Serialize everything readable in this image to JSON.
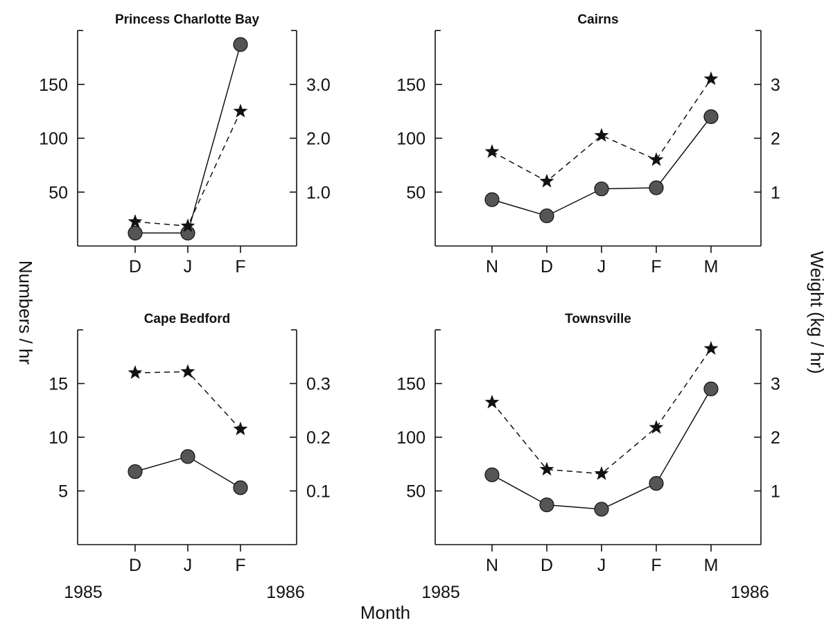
{
  "figure": {
    "y_left_title": "Numbers / hr",
    "y_right_title": "Weight (kg / hr)",
    "x_title": "Month"
  },
  "chart_data": [
    {
      "id": "pcb",
      "type": "line",
      "title": "Princess Charlotte Bay",
      "categories": [
        "D",
        "J",
        "F"
      ],
      "year_labels": [
        "",
        ""
      ],
      "ylim_left": [
        0,
        200
      ],
      "left_ticks": [
        50,
        100,
        150
      ],
      "left_tick_labels": [
        "50",
        "100",
        "150"
      ],
      "ylim_right": [
        0,
        4.0
      ],
      "right_ticks": [
        1.0,
        2.0,
        3.0
      ],
      "right_tick_labels": [
        "1.0",
        "2.0",
        "3.0"
      ],
      "grid": false,
      "series": [
        {
          "axis": "left",
          "marker": "circle",
          "line": "solid",
          "values": [
            12,
            12,
            187
          ]
        },
        {
          "axis": "right",
          "marker": "star",
          "line": "dashed",
          "values": [
            0.45,
            0.37,
            2.5
          ]
        }
      ]
    },
    {
      "id": "cairns",
      "type": "line",
      "title": "Cairns",
      "categories": [
        "N",
        "D",
        "J",
        "F",
        "M"
      ],
      "year_labels": [
        "",
        ""
      ],
      "ylim_left": [
        0,
        200
      ],
      "left_ticks": [
        50,
        100,
        150
      ],
      "left_tick_labels": [
        "50",
        "100",
        "150"
      ],
      "ylim_right": [
        0,
        4
      ],
      "right_ticks": [
        1,
        2,
        3
      ],
      "right_tick_labels": [
        "1",
        "2",
        "3"
      ],
      "grid": false,
      "series": [
        {
          "axis": "left",
          "marker": "circle",
          "line": "solid",
          "values": [
            43,
            28,
            53,
            54,
            120
          ]
        },
        {
          "axis": "right",
          "marker": "star",
          "line": "dashed",
          "values": [
            1.75,
            1.2,
            2.05,
            1.6,
            3.1
          ]
        }
      ]
    },
    {
      "id": "cape-bedford",
      "type": "line",
      "title": "Cape Bedford",
      "categories": [
        "D",
        "J",
        "F"
      ],
      "year_labels": [
        "1985",
        "1986"
      ],
      "ylim_left": [
        0,
        20
      ],
      "left_ticks": [
        5,
        10,
        15
      ],
      "left_tick_labels": [
        "5",
        "10",
        "15"
      ],
      "ylim_right": [
        0,
        0.4
      ],
      "right_ticks": [
        0.1,
        0.2,
        0.3
      ],
      "right_tick_labels": [
        "0.1",
        "0.2",
        "0.3"
      ],
      "grid": false,
      "series": [
        {
          "axis": "left",
          "marker": "circle",
          "line": "solid",
          "values": [
            6.8,
            8.2,
            5.3
          ]
        },
        {
          "axis": "right",
          "marker": "star",
          "line": "dashed",
          "values": [
            0.32,
            0.322,
            0.215
          ]
        }
      ]
    },
    {
      "id": "townsville",
      "type": "line",
      "title": "Townsville",
      "categories": [
        "N",
        "D",
        "J",
        "F",
        "M"
      ],
      "year_labels": [
        "1985",
        "1986"
      ],
      "ylim_left": [
        0,
        200
      ],
      "left_ticks": [
        50,
        100,
        150
      ],
      "left_tick_labels": [
        "50",
        "100",
        "150"
      ],
      "ylim_right": [
        0,
        4
      ],
      "right_ticks": [
        1,
        2,
        3
      ],
      "right_tick_labels": [
        "1",
        "2",
        "3"
      ],
      "grid": false,
      "series": [
        {
          "axis": "left",
          "marker": "circle",
          "line": "solid",
          "values": [
            65,
            37,
            33,
            57,
            145
          ]
        },
        {
          "axis": "right",
          "marker": "star",
          "line": "dashed",
          "values": [
            2.65,
            1.4,
            1.32,
            2.18,
            3.65
          ]
        }
      ]
    }
  ]
}
